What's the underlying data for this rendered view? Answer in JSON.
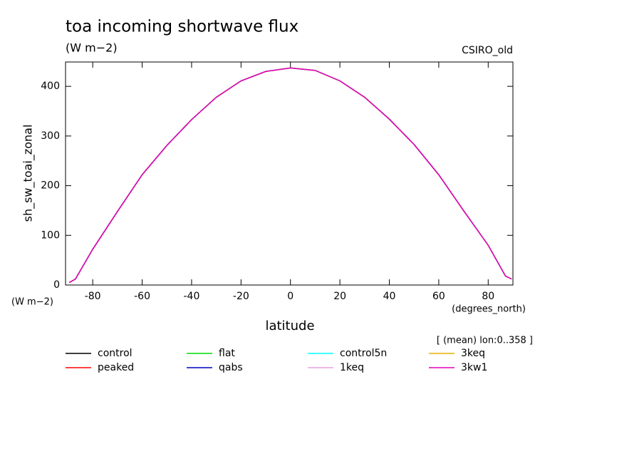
{
  "chart_data": {
    "type": "line",
    "title": "toa incoming shortwave flux",
    "subtitle": "(W m−2)",
    "source": "CSIRO_old",
    "ylabel": "sh_sw_toai_zonal",
    "yunits": "(W m−2)",
    "xunits": "(degrees_north)",
    "xlabel": "latitude",
    "note": "[ (mean) lon:0..358 ]",
    "x": [
      -89.5,
      -87,
      -80,
      -70,
      -60,
      -50,
      -40,
      -30,
      -20,
      -10,
      0,
      10,
      20,
      30,
      40,
      50,
      60,
      70,
      80,
      87,
      89.5
    ],
    "series": [
      {
        "name": "control",
        "color": "#000000",
        "values": [
          5,
          12,
          72,
          148,
          222,
          281,
          333,
          378,
          411,
          430,
          437,
          432,
          411,
          378,
          334,
          283,
          222,
          150,
          80,
          18,
          12
        ]
      },
      {
        "name": "peaked",
        "color": "#ff0000",
        "values": [
          5,
          12,
          72,
          148,
          222,
          281,
          333,
          378,
          411,
          430,
          437,
          432,
          411,
          378,
          334,
          283,
          222,
          150,
          80,
          18,
          12
        ]
      },
      {
        "name": "flat",
        "color": "#00dd00",
        "values": [
          5,
          12,
          72,
          148,
          222,
          281,
          333,
          378,
          411,
          430,
          437,
          432,
          411,
          378,
          334,
          283,
          222,
          150,
          80,
          18,
          12
        ]
      },
      {
        "name": "qabs",
        "color": "#0000c0",
        "values": [
          5,
          12,
          72,
          148,
          222,
          281,
          333,
          378,
          411,
          430,
          437,
          432,
          411,
          378,
          334,
          283,
          222,
          150,
          80,
          18,
          12
        ]
      },
      {
        "name": "control5n",
        "color": "#00ffff",
        "values": [
          5,
          12,
          72,
          148,
          222,
          281,
          333,
          378,
          411,
          430,
          437,
          432,
          411,
          378,
          334,
          283,
          222,
          150,
          80,
          18,
          12
        ]
      },
      {
        "name": "1keq",
        "color": "#e8a0e0",
        "values": [
          5,
          12,
          72,
          148,
          222,
          281,
          333,
          378,
          411,
          430,
          437,
          432,
          411,
          378,
          334,
          283,
          222,
          150,
          80,
          18,
          12
        ]
      },
      {
        "name": "3keq",
        "color": "#e6b000",
        "values": [
          5,
          12,
          72,
          148,
          222,
          281,
          333,
          378,
          411,
          430,
          437,
          432,
          411,
          378,
          334,
          283,
          222,
          150,
          80,
          18,
          12
        ]
      },
      {
        "name": "3kw1",
        "color": "#e000c0",
        "values": [
          5,
          12,
          72,
          148,
          222,
          281,
          333,
          378,
          411,
          430,
          437,
          432,
          411,
          378,
          334,
          283,
          222,
          150,
          80,
          18,
          12
        ]
      }
    ],
    "xlim": [
      -91,
      90
    ],
    "ylim": [
      0,
      449
    ],
    "xticks": [
      -80,
      -60,
      -40,
      -20,
      0,
      20,
      40,
      60,
      80
    ],
    "yticks": [
      0,
      100,
      200,
      300,
      400
    ]
  }
}
